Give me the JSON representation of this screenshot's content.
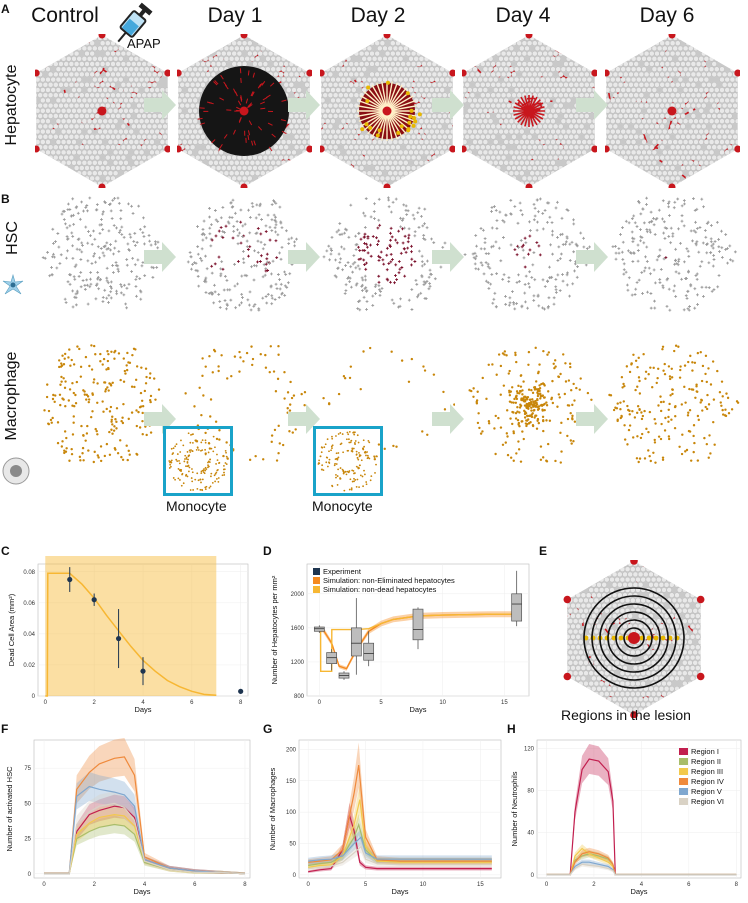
{
  "panel_labels": {
    "A": "A",
    "B": "B",
    "C": "C",
    "D": "D",
    "E": "E",
    "F": "F",
    "G": "G",
    "H": "H"
  },
  "columns": [
    "Control",
    "Day 1",
    "Day 2",
    "Day 4",
    "Day 6"
  ],
  "rows": {
    "hepatocyte": "Hepatocyte",
    "hsc": "HSC",
    "macrophage": "Macrophage"
  },
  "apap_label": "APAP",
  "monocyte_label": "Monocyte",
  "regions_caption": "Regions in the lesion",
  "colors": {
    "arrow": "#cfe0cf",
    "hep_red": "#c8161d",
    "hsc_grey": "#9a9a9a",
    "hsc_dark": "#7a0f2a",
    "mac": "#c8860a",
    "mono_box": "#19a3c9",
    "sim_orange": "#f58a1f",
    "sim_yellow": "#f7b733",
    "exp_navy": "#1e3550"
  },
  "chart_data": [
    {
      "id": "C",
      "type": "line",
      "xlabel": "Days",
      "ylabel": "Dead Cell Area (mm²)",
      "xlim": [
        -0.3,
        8.3
      ],
      "ylim": [
        0,
        0.085
      ],
      "xticks": [
        0,
        2,
        4,
        6,
        8
      ],
      "yticks": [
        0,
        0.02,
        0.04,
        0.06,
        0.08
      ],
      "ytick_labels": [
        "0",
        "0.02",
        "0.04",
        "0.06",
        "0.08"
      ],
      "simulation": {
        "x": [
          0,
          0.08,
          0.1,
          1,
          1.5,
          2,
          2.5,
          3,
          3.5,
          4,
          4.5,
          5,
          5.5,
          6,
          6.5,
          7
        ],
        "y": [
          0,
          0,
          0.079,
          0.079,
          0.072,
          0.063,
          0.052,
          0.042,
          0.032,
          0.023,
          0.016,
          0.01,
          0.006,
          0.003,
          0.001,
          0.0005
        ]
      },
      "experiment": {
        "x": [
          1,
          2,
          3,
          4,
          8
        ],
        "y": [
          0.075,
          0.062,
          0.037,
          0.016,
          0.003
        ],
        "err": [
          0.008,
          0.004,
          0.019,
          0.009,
          0.001
        ]
      }
    },
    {
      "id": "D",
      "type": "box+line",
      "xlabel": "Days",
      "ylabel": "Number of Hepatocytes per mm²",
      "xlim": [
        -1,
        17
      ],
      "ylim": [
        800,
        2350
      ],
      "xticks": [
        0,
        5,
        10,
        15
      ],
      "yticks": [
        800,
        1200,
        1600,
        2000
      ],
      "legend": [
        "Experiment",
        "Simulation: non-Eliminated hepatocytes",
        "Simulation: non-dead hepatocytes"
      ],
      "boxes": [
        {
          "x": 0,
          "q1": 1560,
          "med": 1590,
          "q3": 1610,
          "lo": 1540,
          "hi": 1630
        },
        {
          "x": 1,
          "q1": 1180,
          "med": 1250,
          "q3": 1310,
          "lo": 1100,
          "hi": 1350
        },
        {
          "x": 2,
          "q1": 1010,
          "med": 1040,
          "q3": 1070,
          "lo": 990,
          "hi": 1090
        },
        {
          "x": 3,
          "q1": 1270,
          "med": 1420,
          "q3": 1600,
          "lo": 1050,
          "hi": 1950
        },
        {
          "x": 4,
          "q1": 1220,
          "med": 1300,
          "q3": 1420,
          "lo": 1150,
          "hi": 1560
        },
        {
          "x": 8,
          "q1": 1460,
          "med": 1580,
          "q3": 1820,
          "lo": 1350,
          "hi": 1840
        },
        {
          "x": 16,
          "q1": 1680,
          "med": 1880,
          "q3": 2000,
          "lo": 1620,
          "hi": 2270
        }
      ],
      "sim_noneliminated": {
        "x": [
          0,
          0.3,
          1,
          1.6,
          2.2,
          3,
          4,
          5,
          6,
          7,
          8,
          10,
          12,
          14,
          16
        ],
        "y": [
          1580,
          1580,
          1420,
          1150,
          1120,
          1340,
          1560,
          1650,
          1700,
          1720,
          1740,
          1750,
          1755,
          1760,
          1760
        ]
      },
      "sim_nondead": {
        "x": [
          0,
          0.1,
          0.11,
          1,
          1.01,
          2,
          3,
          4,
          5,
          6,
          8,
          10,
          12,
          14,
          16
        ],
        "y": [
          1580,
          1580,
          1090,
          1090,
          1580,
          1580,
          1580,
          1590,
          1650,
          1700,
          1740,
          1750,
          1755,
          1760,
          1760
        ]
      }
    },
    {
      "id": "F",
      "type": "line",
      "xlabel": "Days",
      "ylabel": "Number of activated HSC",
      "xlim": [
        -0.4,
        8.2
      ],
      "ylim": [
        -3,
        95
      ],
      "xticks": [
        0,
        2,
        4,
        6,
        8
      ],
      "yticks": [
        0,
        25,
        50,
        75
      ],
      "series": [
        {
          "name": "Region I",
          "x": [
            0,
            1,
            1.3,
            1.8,
            2.2,
            2.8,
            3.2,
            3.6,
            4,
            5,
            6,
            7,
            8
          ],
          "y": [
            0,
            0,
            30,
            42,
            45,
            48,
            47,
            40,
            10,
            4,
            2,
            1,
            0
          ]
        },
        {
          "name": "Region II",
          "x": [
            0,
            1,
            1.3,
            1.8,
            2.2,
            2.8,
            3.2,
            3.6,
            4,
            5,
            6,
            7,
            8
          ],
          "y": [
            0,
            0,
            25,
            30,
            33,
            35,
            34,
            28,
            8,
            3,
            1,
            1,
            0
          ]
        },
        {
          "name": "Region III",
          "x": [
            0,
            1,
            1.3,
            1.8,
            2.2,
            2.8,
            3.2,
            3.6,
            4,
            5,
            6,
            7,
            8
          ],
          "y": [
            0,
            0,
            28,
            36,
            40,
            42,
            41,
            34,
            9,
            3,
            1,
            1,
            0
          ]
        },
        {
          "name": "Region IV",
          "x": [
            0,
            1,
            1.3,
            1.8,
            2.2,
            2.8,
            3.2,
            3.6,
            4,
            5,
            6,
            7,
            8
          ],
          "y": [
            0,
            0,
            60,
            72,
            78,
            82,
            83,
            70,
            12,
            4,
            2,
            1,
            0
          ]
        },
        {
          "name": "Region V",
          "x": [
            0,
            1,
            1.3,
            1.8,
            2.2,
            2.8,
            3.2,
            3.6,
            4,
            5,
            6,
            7,
            8
          ],
          "y": [
            0,
            0,
            55,
            62,
            60,
            58,
            56,
            48,
            10,
            4,
            2,
            1,
            0
          ]
        },
        {
          "name": "Region VI",
          "x": [
            0,
            1,
            1.3,
            1.8,
            2.2,
            2.8,
            3.2,
            3.6,
            4,
            5,
            6,
            7,
            8
          ],
          "y": [
            0,
            0,
            35,
            44,
            48,
            50,
            47,
            38,
            9,
            3,
            1,
            1,
            0
          ]
        }
      ]
    },
    {
      "id": "G",
      "type": "line",
      "xlabel": "Days",
      "ylabel": "Number of Macrophages",
      "xlim": [
        -0.8,
        16.8
      ],
      "ylim": [
        -5,
        215
      ],
      "xticks": [
        0,
        5,
        10,
        15
      ],
      "yticks": [
        0,
        50,
        100,
        150,
        200
      ],
      "series": [
        {
          "name": "Region I",
          "x": [
            0,
            1,
            2,
            3,
            3.6,
            4,
            4.5,
            5,
            6,
            8,
            10,
            12,
            14,
            16
          ],
          "y": [
            5,
            8,
            10,
            40,
            95,
            70,
            20,
            12,
            10,
            10,
            10,
            10,
            10,
            10
          ]
        },
        {
          "name": "Region II",
          "x": [
            0,
            1,
            2,
            3,
            4,
            4.4,
            5,
            6,
            8,
            10,
            12,
            14,
            16
          ],
          "y": [
            15,
            18,
            20,
            30,
            60,
            80,
            40,
            22,
            22,
            22,
            22,
            22,
            22
          ]
        },
        {
          "name": "Region III",
          "x": [
            0,
            1,
            2,
            3,
            4,
            4.5,
            5,
            6,
            8,
            10,
            12,
            14,
            16
          ],
          "y": [
            12,
            15,
            16,
            30,
            80,
            120,
            45,
            22,
            20,
            20,
            20,
            20,
            20
          ]
        },
        {
          "name": "Region IV",
          "x": [
            0,
            1,
            2,
            3,
            4,
            4.4,
            5,
            6,
            8,
            10,
            12,
            14,
            16
          ],
          "y": [
            20,
            22,
            24,
            40,
            130,
            175,
            60,
            24,
            22,
            22,
            22,
            22,
            22
          ]
        },
        {
          "name": "Region V",
          "x": [
            0,
            1,
            2,
            3,
            4,
            4.6,
            5,
            6,
            8,
            10,
            12,
            14,
            16
          ],
          "y": [
            22,
            24,
            25,
            30,
            50,
            60,
            35,
            25,
            25,
            25,
            25,
            25,
            25
          ]
        },
        {
          "name": "Region VI",
          "x": [
            0,
            1,
            2,
            3,
            4,
            4.6,
            5,
            6,
            8,
            10,
            12,
            14,
            16
          ],
          "y": [
            10,
            12,
            14,
            20,
            35,
            45,
            25,
            18,
            16,
            16,
            16,
            16,
            16
          ]
        }
      ]
    },
    {
      "id": "H",
      "type": "line",
      "xlabel": "Days",
      "ylabel": "Number of Neutrophils",
      "xlim": [
        -0.4,
        8.2
      ],
      "ylim": [
        -3,
        128
      ],
      "xticks": [
        0,
        2,
        4,
        6,
        8
      ],
      "yticks": [
        0,
        40,
        80,
        120
      ],
      "legend": [
        "Region I",
        "Region II",
        "Region III",
        "Region IV",
        "Region V",
        "Region VI"
      ],
      "series": [
        {
          "name": "Region I",
          "x": [
            0,
            1,
            1.2,
            1.5,
            1.8,
            2.2,
            2.6,
            2.8,
            2.9,
            8
          ],
          "y": [
            0,
            0,
            60,
            100,
            110,
            108,
            98,
            70,
            0,
            0
          ]
        },
        {
          "name": "Region II",
          "x": [
            0,
            1,
            1.2,
            1.5,
            1.8,
            2.2,
            2.6,
            2.8,
            2.9,
            8
          ],
          "y": [
            0,
            0,
            14,
            18,
            20,
            18,
            15,
            10,
            0,
            0
          ]
        },
        {
          "name": "Region III",
          "x": [
            0,
            1,
            1.2,
            1.5,
            1.8,
            2.2,
            2.6,
            2.8,
            2.9,
            8
          ],
          "y": [
            0,
            0,
            18,
            25,
            20,
            16,
            12,
            8,
            0,
            0
          ]
        },
        {
          "name": "Region IV",
          "x": [
            0,
            1,
            1.2,
            1.5,
            1.8,
            2.2,
            2.6,
            2.8,
            2.9,
            8
          ],
          "y": [
            0,
            0,
            12,
            20,
            22,
            20,
            16,
            10,
            0,
            0
          ]
        },
        {
          "name": "Region V",
          "x": [
            0,
            1,
            1.2,
            1.5,
            1.8,
            2.2,
            2.6,
            2.8,
            2.9,
            8
          ],
          "y": [
            0,
            0,
            8,
            12,
            12,
            10,
            8,
            5,
            0,
            0
          ]
        },
        {
          "name": "Region VI",
          "x": [
            0,
            1,
            1.2,
            1.5,
            1.8,
            2.2,
            2.6,
            2.8,
            2.9,
            8
          ],
          "y": [
            0,
            0,
            6,
            10,
            9,
            8,
            6,
            4,
            0,
            0
          ]
        }
      ]
    }
  ],
  "region_colors": [
    "#c21f4f",
    "#a8bd6a",
    "#f2c94c",
    "#ef8a3c",
    "#7fa7cf",
    "#d9d2c5"
  ]
}
